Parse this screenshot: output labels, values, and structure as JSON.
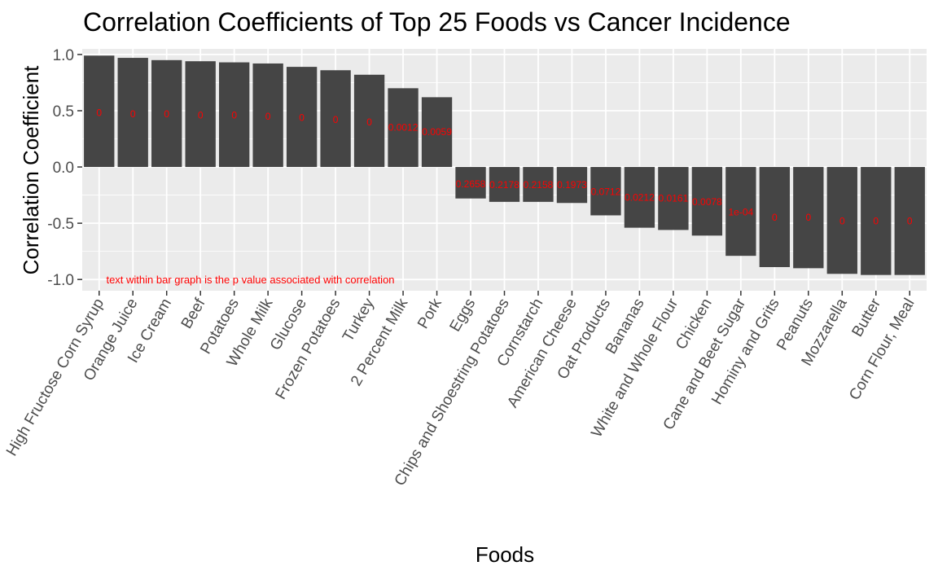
{
  "chart_data": {
    "type": "bar",
    "title": "Correlation Coefficients of Top 25 Foods vs Cancer Incidence",
    "xlabel": "Foods",
    "ylabel": "Correlation Coefficient",
    "ylim": [
      -1.1,
      1.05
    ],
    "yticks": [
      {
        "value": 1.0,
        "label": "1.0"
      },
      {
        "value": 0.5,
        "label": "0.5"
      },
      {
        "value": 0.0,
        "label": "0.0"
      },
      {
        "value": -0.5,
        "label": "-0.5"
      },
      {
        "value": -1.0,
        "label": "-1.0"
      }
    ],
    "grid": true,
    "bar_color": "#454545",
    "panel_color": "#ebebeb",
    "label_color": "#ff0000",
    "annotation": "text within bar graph is the p value associated with correlation",
    "bars": [
      {
        "category": "High Fructose Corn Syrup",
        "value": 0.99,
        "p_label": "0",
        "label_y": 0.48
      },
      {
        "category": "Orange Juice",
        "value": 0.97,
        "p_label": "0",
        "label_y": 0.47
      },
      {
        "category": "Ice Cream",
        "value": 0.95,
        "p_label": "0",
        "label_y": 0.47
      },
      {
        "category": "Beef",
        "value": 0.94,
        "p_label": "0",
        "label_y": 0.46
      },
      {
        "category": "Potatoes",
        "value": 0.93,
        "p_label": "0",
        "label_y": 0.46
      },
      {
        "category": "Whole Milk",
        "value": 0.92,
        "p_label": "0",
        "label_y": 0.45
      },
      {
        "category": "Glucose",
        "value": 0.89,
        "p_label": "0",
        "label_y": 0.44
      },
      {
        "category": "Frozen Potatoes",
        "value": 0.86,
        "p_label": "0",
        "label_y": 0.42
      },
      {
        "category": "Turkey",
        "value": 0.82,
        "p_label": "0",
        "label_y": 0.4
      },
      {
        "category": "2 Percent Milk",
        "value": 0.7,
        "p_label": "0.0012",
        "label_y": 0.35
      },
      {
        "category": "Pork",
        "value": 0.62,
        "p_label": "0.0059",
        "label_y": 0.31
      },
      {
        "category": "Eggs",
        "value": -0.28,
        "p_label": "0.2658",
        "label_y": -0.15
      },
      {
        "category": "Chips and Shoestring Potatoes",
        "value": -0.31,
        "p_label": "0.2178",
        "label_y": -0.16
      },
      {
        "category": "Cornstarch",
        "value": -0.31,
        "p_label": "0.2158",
        "label_y": -0.16
      },
      {
        "category": "American Cheese",
        "value": -0.32,
        "p_label": "0.1973",
        "label_y": -0.16
      },
      {
        "category": "Oat Products",
        "value": -0.43,
        "p_label": "0.0712",
        "label_y": -0.22
      },
      {
        "category": "Bananas",
        "value": -0.54,
        "p_label": "0.0212",
        "label_y": -0.27
      },
      {
        "category": "White and Whole Flour",
        "value": -0.56,
        "p_label": "0.0161",
        "label_y": -0.28
      },
      {
        "category": "Chicken",
        "value": -0.61,
        "p_label": "0.0078",
        "label_y": -0.31
      },
      {
        "category": "Cane and Beet Sugar",
        "value": -0.79,
        "p_label": "1e-04",
        "label_y": -0.4
      },
      {
        "category": "Hominy and Grits",
        "value": -0.89,
        "p_label": "0",
        "label_y": -0.45
      },
      {
        "category": "Peanuts",
        "value": -0.9,
        "p_label": "0",
        "label_y": -0.45
      },
      {
        "category": "Mozzarella",
        "value": -0.95,
        "p_label": "0",
        "label_y": -0.48
      },
      {
        "category": "Butter",
        "value": -0.96,
        "p_label": "0",
        "label_y": -0.48
      },
      {
        "category": "Corn Flour, Meal",
        "value": -0.96,
        "p_label": "0",
        "label_y": -0.48
      }
    ]
  }
}
